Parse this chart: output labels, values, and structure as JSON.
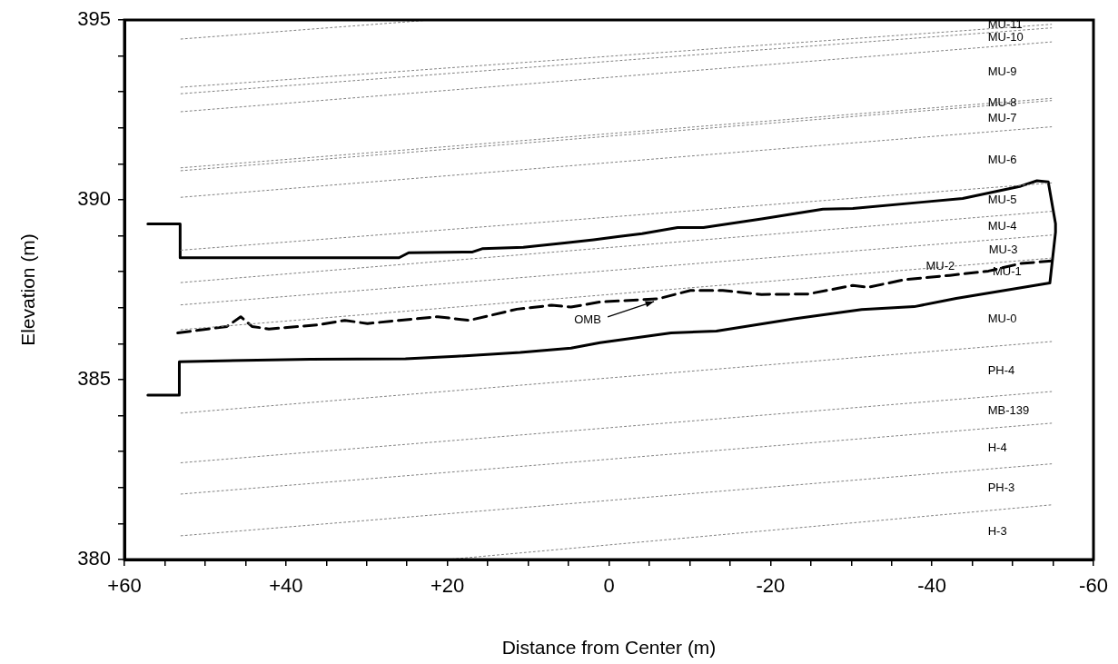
{
  "chart_data": {
    "type": "line",
    "xlabel": "Distance from Center (m)",
    "ylabel": "Elevation (m)",
    "xlim": [
      60,
      -60
    ],
    "ylim": [
      380,
      395
    ],
    "xticks": [
      {
        "value": 60,
        "label": "+60"
      },
      {
        "value": 55,
        "label": null
      },
      {
        "value": 50,
        "label": null
      },
      {
        "value": 45,
        "label": null
      },
      {
        "value": 40,
        "label": "+40"
      },
      {
        "value": 35,
        "label": null
      },
      {
        "value": 30,
        "label": null
      },
      {
        "value": 25,
        "label": null
      },
      {
        "value": 20,
        "label": "+20"
      },
      {
        "value": 15,
        "label": null
      },
      {
        "value": 10,
        "label": null
      },
      {
        "value": 5,
        "label": null
      },
      0,
      {
        "value": -5,
        "label": null
      },
      {
        "value": -10,
        "label": null
      },
      {
        "value": -15,
        "label": null
      },
      -20,
      {
        "value": -25,
        "label": null
      },
      {
        "value": -30,
        "label": null
      },
      {
        "value": -35,
        "label": null
      },
      -40,
      {
        "value": -45,
        "label": null
      },
      {
        "value": -50,
        "label": null
      },
      {
        "value": -55,
        "label": null
      },
      -60
    ],
    "yticks": [
      380,
      {
        "value": 381,
        "label": null
      },
      {
        "value": 382,
        "label": null
      },
      {
        "value": 383,
        "label": null
      },
      {
        "value": 384,
        "label": null
      },
      385,
      {
        "value": 386,
        "label": null
      },
      {
        "value": 387,
        "label": null
      },
      {
        "value": 388,
        "label": null
      },
      {
        "value": 389,
        "label": null
      },
      390,
      {
        "value": 391,
        "label": null
      },
      {
        "value": 392,
        "label": null
      },
      {
        "value": 393,
        "label": null
      },
      {
        "value": 394,
        "label": null
      },
      395
    ],
    "grid": false,
    "legend": false,
    "marker": "none",
    "series": [
      {
        "color": "#808080",
        "line_style": "dotted",
        "x": [
          53,
          22
        ],
        "values": [
          394.47,
          395
        ]
      },
      {
        "color": "#808080",
        "line_style": "dotted",
        "x": [
          53,
          -54.8
        ],
        "values": [
          393.13,
          394.88
        ]
      },
      {
        "color": "#808080",
        "line_style": "dotted",
        "x": [
          53,
          -54.8
        ],
        "values": [
          392.95,
          394.78
        ]
      },
      {
        "color": "#808080",
        "line_style": "dotted",
        "x": [
          53,
          -54.8
        ],
        "values": [
          392.45,
          394.39
        ]
      },
      {
        "color": "#808080",
        "line_style": "dotted",
        "x": [
          53,
          -54.8
        ],
        "values": [
          390.89,
          392.82
        ]
      },
      {
        "color": "#808080",
        "line_style": "dotted",
        "x": [
          53,
          -54.8
        ],
        "values": [
          390.81,
          392.76
        ]
      },
      {
        "color": "#808080",
        "line_style": "dotted",
        "x": [
          53,
          -54.8
        ],
        "values": [
          390.07,
          392.03
        ]
      },
      {
        "color": "#808080",
        "line_style": "dotted",
        "x": [
          53,
          -54.8
        ],
        "values": [
          388.6,
          390.47
        ]
      },
      {
        "color": "#808080",
        "line_style": "dotted",
        "x": [
          53,
          -54.8
        ],
        "values": [
          387.7,
          389.68
        ]
      },
      {
        "color": "#808080",
        "line_style": "dotted",
        "x": [
          53,
          -54.8
        ],
        "values": [
          387.08,
          389.02
        ]
      },
      {
        "color": "#808080",
        "line_style": "dotted",
        "x": [
          53,
          -54.8
        ],
        "values": [
          386.39,
          388.38
        ]
      },
      {
        "color": "#808080",
        "line_style": "dotted",
        "x": [
          53,
          -54.8
        ],
        "values": [
          384.07,
          386.06
        ]
      },
      {
        "color": "#808080",
        "line_style": "dotted",
        "x": [
          53,
          -54.8
        ],
        "values": [
          382.69,
          384.67
        ]
      },
      {
        "color": "#808080",
        "line_style": "dotted",
        "x": [
          53,
          -54.8
        ],
        "values": [
          381.82,
          383.79
        ]
      },
      {
        "color": "#808080",
        "line_style": "dotted",
        "x": [
          53,
          -54.8
        ],
        "values": [
          380.66,
          382.66
        ]
      },
      {
        "color": "#808080",
        "line_style": "dotted",
        "x": [
          20,
          -54.8
        ],
        "values": [
          380,
          381.52
        ]
      },
      {
        "color": "#000000",
        "line_style": "solid",
        "x": [
          57.1,
          53.1,
          53.1,
          26,
          24.8,
          16.9,
          15.7,
          10.6,
          5.5,
          1.9,
          -1.1,
          -4.1,
          -8.5,
          -11.7,
          -18.9,
          -26.5,
          -30.2,
          -39,
          -43.8,
          -51,
          -53,
          -54.4,
          -55.3,
          -55.3,
          -54.6,
          -43,
          -37.8,
          -31.3,
          -22.9,
          -13.3,
          -7.7,
          1.1,
          4.7,
          11,
          18.9,
          25.2,
          37,
          53.2,
          53.2,
          57.1
        ],
        "values": [
          389.33,
          389.33,
          388.39,
          388.39,
          388.53,
          388.55,
          388.64,
          388.68,
          388.8,
          388.89,
          388.98,
          389.06,
          389.23,
          389.23,
          389.47,
          389.74,
          389.76,
          389.94,
          390.04,
          390.38,
          390.53,
          390.5,
          389.34,
          389.1,
          387.69,
          387.26,
          387.03,
          386.95,
          386.69,
          386.35,
          386.3,
          386.03,
          385.88,
          385.76,
          385.65,
          385.58,
          385.57,
          385.5,
          384.57,
          384.57
        ]
      },
      {
        "color": "#000000",
        "line_style": "dashed",
        "x": [
          53.4,
          47.3,
          45.6,
          44.2,
          42.1,
          36.2,
          32.7,
          29.9,
          26,
          21.2,
          17.3,
          11.4,
          7.1,
          4.7,
          1.1,
          -6.1,
          -10.1,
          -14.1,
          -18.9,
          -24.6,
          -30.2,
          -32.1,
          -36.6,
          -42.2,
          -47,
          -51,
          -54.8
        ],
        "values": [
          386.3,
          386.48,
          386.75,
          386.48,
          386.41,
          386.52,
          386.65,
          386.56,
          386.65,
          386.75,
          386.65,
          386.96,
          387.07,
          387.02,
          387.16,
          387.25,
          387.48,
          387.48,
          387.37,
          387.38,
          387.62,
          387.57,
          387.78,
          387.9,
          388.02,
          388.23,
          388.3
        ]
      }
    ],
    "annotations": [
      {
        "text": "OMB",
        "x": -5.8,
        "y": 387.2
      },
      "MU-11",
      "MU-10",
      "MU-9",
      "MU-8",
      "MU-7",
      "MU-6",
      "MU-5",
      "MU-4",
      "MU-3",
      "MU-2",
      "MU-1",
      "MU-0",
      "PH-4",
      "MB-139",
      "H-4",
      "PH-3",
      "H-3"
    ]
  }
}
